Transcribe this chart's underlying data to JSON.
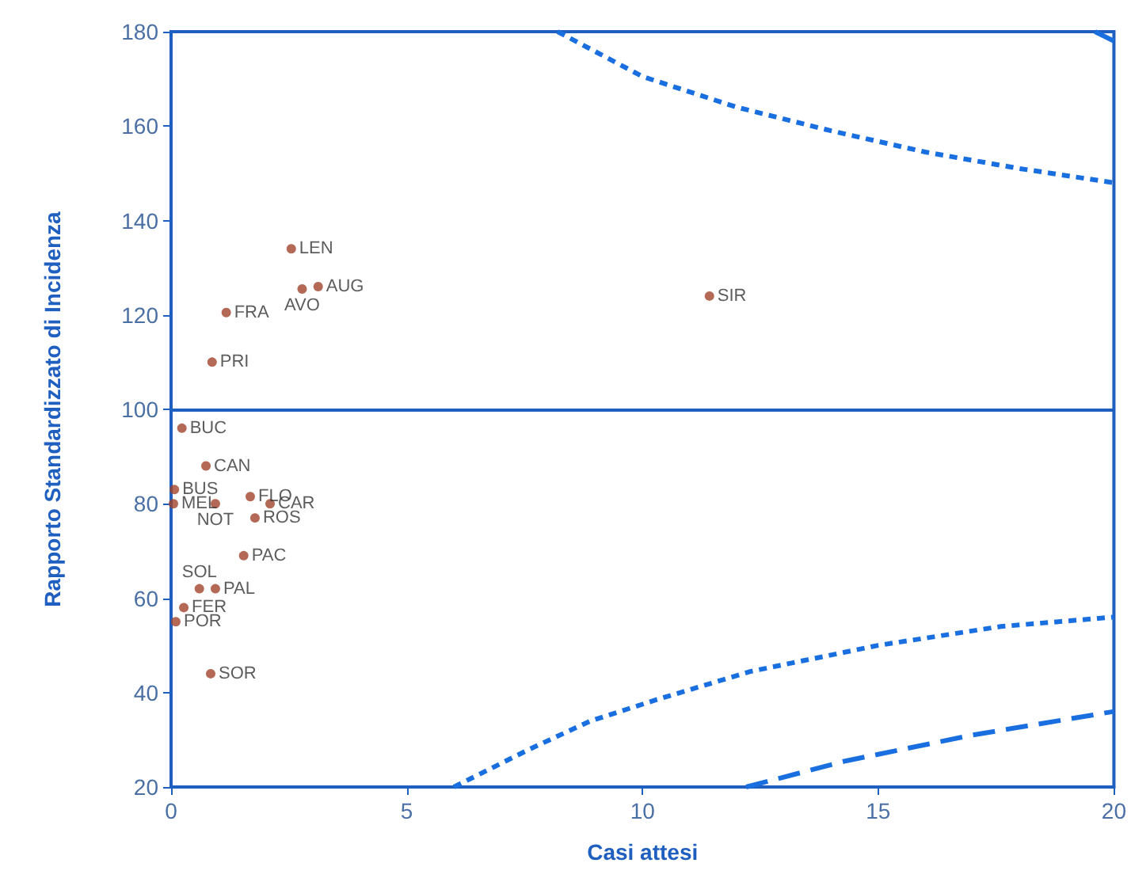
{
  "chart_data": {
    "type": "scatter",
    "xlabel": "Casi attesi",
    "ylabel": "Rapporto Standardizzato di Incidenza",
    "xlim": [
      0,
      20
    ],
    "xticks": [
      0,
      5,
      10,
      15,
      20
    ],
    "ylim": [
      20,
      180
    ],
    "yticks": [
      20,
      40,
      60,
      80,
      100,
      120,
      140,
      160,
      180
    ],
    "marker": "circle",
    "ref_lines": [
      {
        "axis": "y",
        "value": 100,
        "color": "#1f5fbf",
        "line_style": "solid"
      }
    ],
    "series": [
      {
        "name": "BUC",
        "color": "#a0442c",
        "x": [
          0.23
        ],
        "values": [
          96
        ]
      },
      {
        "name": "CAN",
        "color": "#a0442c",
        "x": [
          0.74
        ],
        "values": [
          88
        ]
      },
      {
        "name": "BUS",
        "color": "#a0442c",
        "x": [
          0.07
        ],
        "values": [
          83
        ]
      },
      {
        "name": "FLO",
        "color": "#a0442c",
        "x": [
          1.68
        ],
        "values": [
          81.5
        ]
      },
      {
        "name": "MEL",
        "color": "#a0442c",
        "x": [
          0.05
        ],
        "values": [
          80
        ]
      },
      {
        "name": "NOT",
        "color": "#a0442c",
        "x": [
          0.94
        ],
        "values": [
          80
        ]
      },
      {
        "name": "CAR",
        "color": "#a0442c",
        "x": [
          2.1
        ],
        "values": [
          80
        ]
      },
      {
        "name": "ROS",
        "color": "#a0442c",
        "x": [
          1.78
        ],
        "values": [
          77
        ]
      },
      {
        "name": "PAC",
        "color": "#a0442c",
        "x": [
          1.54
        ],
        "values": [
          69
        ]
      },
      {
        "name": "SOL",
        "color": "#a0442c",
        "x": [
          0.6
        ],
        "values": [
          62
        ]
      },
      {
        "name": "PAL",
        "color": "#a0442c",
        "x": [
          0.94
        ],
        "values": [
          62
        ]
      },
      {
        "name": "FER",
        "color": "#a0442c",
        "x": [
          0.27
        ],
        "values": [
          58
        ]
      },
      {
        "name": "POR",
        "color": "#a0442c",
        "x": [
          0.1
        ],
        "values": [
          55
        ]
      },
      {
        "name": "SOR",
        "color": "#a0442c",
        "x": [
          0.84
        ],
        "values": [
          44
        ]
      },
      {
        "name": "LEN",
        "color": "#a0442c",
        "x": [
          2.55
        ],
        "values": [
          134
        ]
      },
      {
        "name": "AVO",
        "color": "#a0442c",
        "x": [
          2.78
        ],
        "values": [
          125.5
        ]
      },
      {
        "name": "AUG",
        "color": "#a0442c",
        "x": [
          3.12
        ],
        "values": [
          126
        ]
      },
      {
        "name": "FRA",
        "color": "#a0442c",
        "x": [
          1.17
        ],
        "values": [
          120.5
        ]
      },
      {
        "name": "PRI",
        "color": "#a0442c",
        "x": [
          0.87
        ],
        "values": [
          110
        ]
      },
      {
        "name": "SIR",
        "color": "#a0442c",
        "x": [
          11.42
        ],
        "values": [
          124
        ]
      },
      {
        "type": "line",
        "color": "#1a6fe0",
        "line_style": "dotted",
        "marker": "none",
        "x": [
          8.2,
          10,
          12,
          14,
          16,
          18,
          20
        ],
        "values": [
          180,
          170.5,
          164,
          159,
          154.5,
          151,
          148
        ]
      },
      {
        "type": "line",
        "color": "#1a6fe0",
        "line_style": "dashed",
        "marker": "none",
        "x": [
          19.6,
          20
        ],
        "values": [
          180,
          178
        ]
      },
      {
        "type": "line",
        "color": "#1a6fe0",
        "line_style": "dotted",
        "marker": "none",
        "x": [
          6,
          7.6,
          8.9,
          10.3,
          12.3,
          15,
          17.6,
          20
        ],
        "values": [
          20,
          28,
          34,
          38.5,
          44.5,
          50,
          54,
          56
        ]
      },
      {
        "type": "line",
        "color": "#1a6fe0",
        "line_style": "dashed",
        "marker": "none",
        "x": [
          12.2,
          14.3,
          17,
          20
        ],
        "values": [
          20,
          25.5,
          31,
          36
        ]
      }
    ]
  }
}
